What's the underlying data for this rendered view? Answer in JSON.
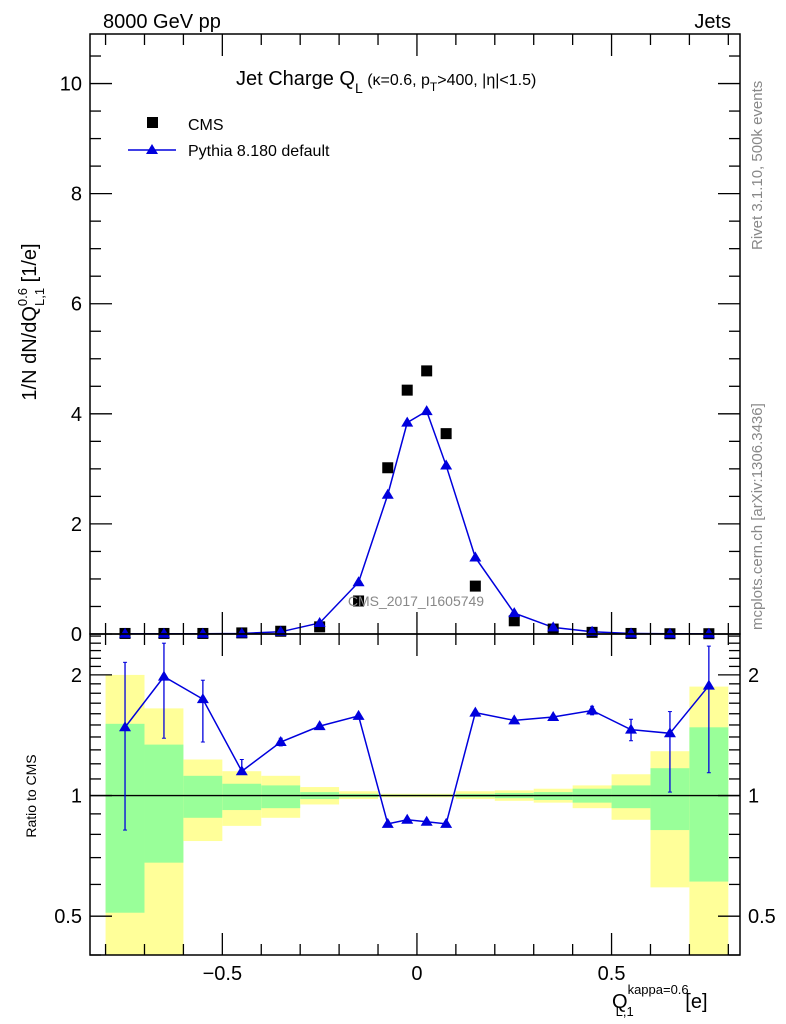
{
  "header": {
    "left": "8000 GeV pp",
    "right": "Jets"
  },
  "side_text": {
    "rivet": "Rivet 3.1.10,  500k events",
    "mcplots": "mcplots.cern.ch [arXiv:1306.3436]"
  },
  "watermark": "CMS_2017_I1605749",
  "chart_data": [
    {
      "type": "scatter",
      "title": {
        "main": "Jet Charge Q",
        "sub": "L",
        "rest1": " (κ=0.6, p",
        "sub2": "T",
        "rest2": ">400, |η|<1.5)"
      },
      "ylabel": {
        "a": "1/N dN/dQ",
        "sup": "0.6",
        "sub": "L,1",
        "b": " [1/e]"
      },
      "xlim": [
        -0.84,
        0.83
      ],
      "ylim": [
        0,
        10.9
      ],
      "yticks": [
        0,
        2,
        4,
        6,
        8,
        10
      ],
      "ytick_labels": [
        "0",
        "2",
        "4",
        "6",
        "8",
        "10"
      ],
      "legend": {
        "placement": "top-left",
        "entries": [
          "CMS",
          "Pythia 8.180 default"
        ]
      },
      "x": [
        -0.75,
        -0.65,
        -0.55,
        -0.45,
        -0.35,
        -0.25,
        -0.15,
        -0.075,
        -0.025,
        0.025,
        0.075,
        0.15,
        0.25,
        0.35,
        0.45,
        0.55,
        0.65,
        0.75
      ],
      "series": [
        {
          "name": "CMS",
          "color": "#000000",
          "marker": "square",
          "values": [
            0.01,
            0.01,
            0.01,
            0.02,
            0.05,
            0.13,
            0.6,
            3.02,
            4.43,
            4.78,
            3.64,
            0.87,
            0.24,
            0.09,
            0.03,
            0.01,
            0.005,
            0.005
          ]
        },
        {
          "name": "Pythia 8.180 default",
          "color": "#0000dd",
          "marker": "triangle",
          "values": [
            0.005,
            0.005,
            0.005,
            0.01,
            0.04,
            0.2,
            0.94,
            2.53,
            3.84,
            4.05,
            3.06,
            1.39,
            0.38,
            0.12,
            0.04,
            0.01,
            0.005,
            0.005
          ]
        }
      ]
    },
    {
      "type": "line",
      "ylabel": "Ratio to CMS",
      "yscale": "log",
      "ylim": [
        0.4,
        2.53
      ],
      "yticks": [
        0.5,
        1,
        2
      ],
      "ytick_labels": [
        "0.5",
        "1",
        "2"
      ],
      "xlim": [
        -0.84,
        0.83
      ],
      "xticks": [
        -0.5,
        0,
        0.5
      ],
      "xtick_labels": [
        "−0.5",
        "0",
        "0.5"
      ],
      "xlabel": {
        "a": "Q",
        "sup": "kappa=0.6",
        "sub": "L,1",
        "b": " [e]"
      },
      "bin_edges": [
        -0.8,
        -0.7,
        -0.6,
        -0.5,
        -0.4,
        -0.3,
        -0.2,
        -0.1,
        -0.05,
        0,
        0.05,
        0.1,
        0.2,
        0.3,
        0.4,
        0.5,
        0.6,
        0.7,
        0.8
      ],
      "band_colors": {
        "inner": "#99ff99",
        "outer": "#ffff99"
      },
      "band_inner_up": [
        1.51,
        1.34,
        1.12,
        1.07,
        1.06,
        1.02,
        1.01,
        1.005,
        1.005,
        1.005,
        1.005,
        1.01,
        1.015,
        1.02,
        1.04,
        1.06,
        1.17,
        1.48
      ],
      "band_inner_down": [
        0.51,
        0.68,
        0.88,
        0.92,
        0.93,
        0.98,
        0.99,
        0.995,
        0.995,
        0.995,
        0.995,
        0.99,
        0.985,
        0.975,
        0.96,
        0.93,
        0.82,
        0.61
      ],
      "band_outer_up": [
        2.0,
        1.65,
        1.23,
        1.15,
        1.12,
        1.05,
        1.025,
        1.01,
        1.01,
        1.01,
        1.01,
        1.025,
        1.03,
        1.04,
        1.06,
        1.13,
        1.29,
        1.87
      ],
      "band_outer_down": [
        0.35,
        0.35,
        0.77,
        0.84,
        0.88,
        0.95,
        0.98,
        0.99,
        0.99,
        0.99,
        0.99,
        0.98,
        0.97,
        0.96,
        0.93,
        0.87,
        0.59,
        0.35
      ],
      "x": [
        -0.75,
        -0.65,
        -0.55,
        -0.45,
        -0.35,
        -0.25,
        -0.15,
        -0.075,
        -0.025,
        0.025,
        0.075,
        0.15,
        0.25,
        0.35,
        0.45,
        0.55,
        0.65,
        0.75
      ],
      "series": [
        {
          "name": "Pythia 8.180 default / CMS",
          "color": "#0000dd",
          "values": [
            1.48,
            1.98,
            1.74,
            1.15,
            1.36,
            1.49,
            1.58,
            0.85,
            0.87,
            0.86,
            0.85,
            1.61,
            1.54,
            1.57,
            1.63,
            1.46,
            1.43,
            1.88
          ],
          "err_up": [
            2.15,
            2.4,
            1.94,
            1.23,
            1.39,
            1.5,
            1.59,
            0.85,
            0.87,
            0.86,
            0.85,
            1.62,
            1.55,
            1.58,
            1.67,
            1.55,
            1.62,
            2.36
          ],
          "err_down": [
            0.82,
            1.39,
            1.36,
            1.13,
            1.33,
            1.48,
            1.57,
            0.85,
            0.87,
            0.86,
            0.85,
            1.6,
            1.53,
            1.56,
            1.59,
            1.37,
            1.02,
            1.14
          ]
        }
      ]
    }
  ]
}
